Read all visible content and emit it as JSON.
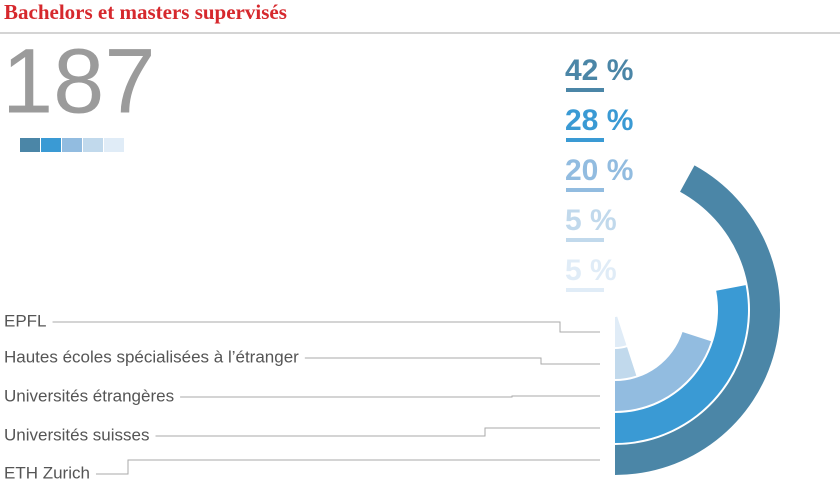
{
  "chart_data": {
    "type": "radial_bar",
    "title": "Bachelors et masters supervisés",
    "total": 187,
    "categories": [
      "ETH Zurich",
      "Universités suisses",
      "Universités étrangères",
      "Hautes écoles spécialisées à l’étranger",
      "EPFL"
    ],
    "values": [
      42,
      28,
      20,
      5,
      5
    ],
    "value_labels": [
      "42 %",
      "28 %",
      "20 %",
      "5 %",
      "5 %"
    ],
    "colors": [
      "#4b86a7",
      "#3a9ad4",
      "#92bce0",
      "#c1d9ec",
      "#e0ecf7"
    ]
  }
}
